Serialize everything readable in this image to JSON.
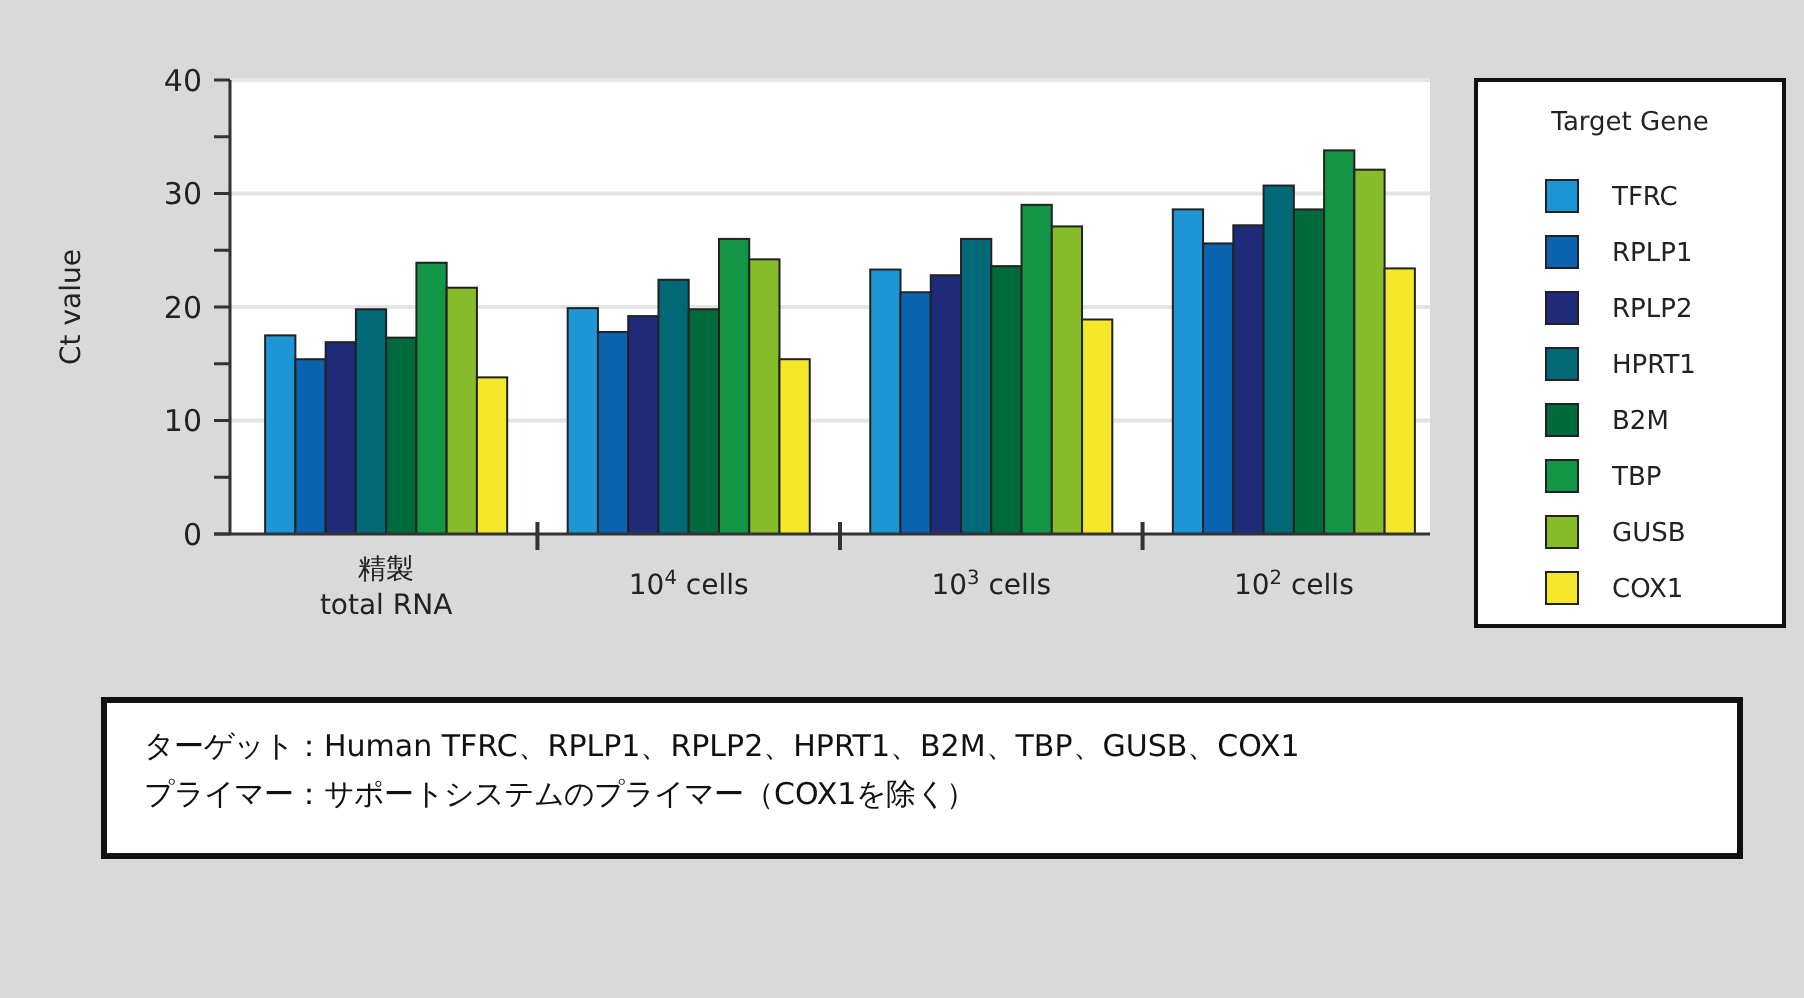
{
  "chart_data": {
    "type": "bar",
    "ylabel": "Ct value",
    "categories": [
      "精製\ntotal RNA",
      "10$^{4}$ cells",
      "10$^{3}$ cells",
      "10$^{2}$ cells"
    ],
    "series": [
      {
        "name": "TFRC",
        "color": "#1e96d6",
        "values": [
          17.5,
          19.9,
          23.3,
          28.6
        ]
      },
      {
        "name": "RPLP1",
        "color": "#0a63ae",
        "values": [
          15.4,
          17.8,
          21.3,
          25.6
        ]
      },
      {
        "name": "RPLP2",
        "color": "#1f2a78",
        "values": [
          16.9,
          19.2,
          22.8,
          27.2
        ]
      },
      {
        "name": "HPRT1",
        "color": "#006877",
        "values": [
          19.8,
          22.4,
          26,
          30.7
        ]
      },
      {
        "name": "B2M",
        "color": "#006a3c",
        "values": [
          17.3,
          19.8,
          23.6,
          28.6
        ]
      },
      {
        "name": "TBP",
        "color": "#129645",
        "values": [
          23.9,
          26,
          29,
          33.8
        ]
      },
      {
        "name": "GUSB",
        "color": "#86bb2a",
        "values": [
          21.7,
          24.2,
          27.1,
          32.1
        ]
      },
      {
        "name": "COX1",
        "color": "#f5e82a",
        "values": [
          13.8,
          15.4,
          18.9,
          23.4
        ]
      }
    ],
    "ylim": [
      0,
      40
    ],
    "yticks": [
      0,
      {
        "value": 5,
        "label": null
      },
      10,
      {
        "value": 15,
        "label": null
      },
      20,
      {
        "value": 25,
        "label": null
      },
      30,
      {
        "value": 35,
        "label": null
      },
      40
    ],
    "grid": "y",
    "legend": "right",
    "legend_title": "Target Gene",
    "annotations": [
      "ターゲット：Human TFRC、RPLP1、RPLP2、HPRT1、B2M、TBP、GUSB、COX1",
      "プライマー：サポートシステムのプライマー（COX1を除く）"
    ]
  }
}
